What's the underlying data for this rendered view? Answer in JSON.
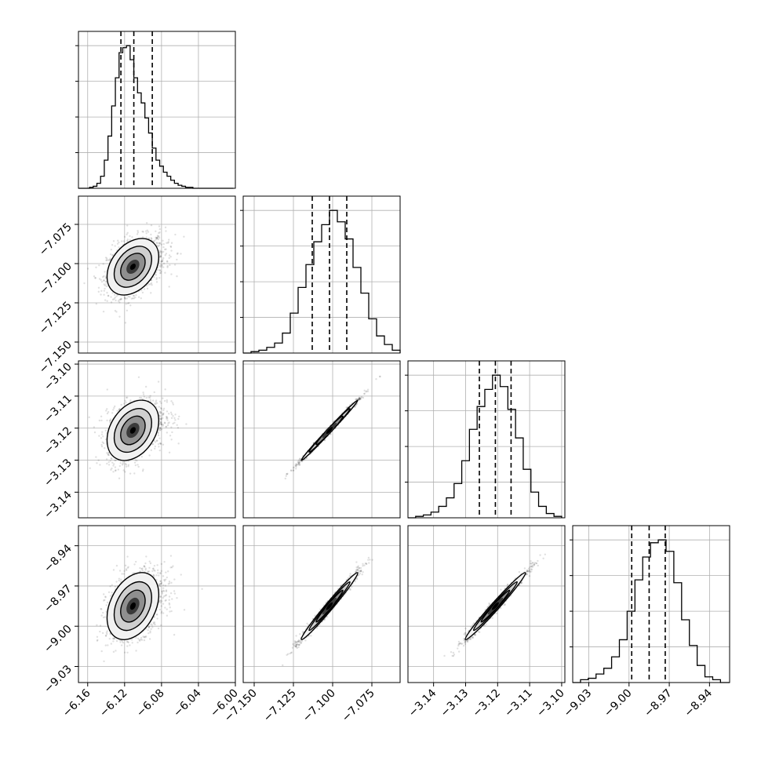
{
  "chart_data": {
    "type": "corner",
    "grid": true,
    "parameters": [
      {
        "index": 0,
        "range": [
          -6.17,
          -6.0
        ],
        "ticks": [
          -6.16,
          -6.12,
          -6.08,
          -6.04,
          -6.0
        ],
        "tick_labels": [
          "−6.16",
          "−6.12",
          "−6.08",
          "−6.04",
          "−6.00"
        ],
        "quantiles": [
          -6.124,
          -6.11,
          -6.09
        ]
      },
      {
        "index": 1,
        "range": [
          -7.157,
          -7.057
        ],
        "ticks": [
          -7.15,
          -7.125,
          -7.1,
          -7.075
        ],
        "tick_labels": [
          "−7.150",
          "−7.125",
          "−7.100",
          "−7.075"
        ],
        "quantiles": [
          -7.113,
          -7.102,
          -7.091
        ]
      },
      {
        "index": 2,
        "range": [
          -3.148,
          -3.099
        ],
        "ticks": [
          -3.14,
          -3.13,
          -3.12,
          -3.11,
          -3.1
        ],
        "tick_labels": [
          "−3.14",
          "−3.13",
          "−3.12",
          "−3.11",
          "−3.10"
        ],
        "quantiles": [
          -3.1257,
          -3.1207,
          -3.1158
        ]
      },
      {
        "index": 3,
        "range": [
          -9.042,
          -8.925
        ],
        "ticks": [
          -9.03,
          -9.0,
          -8.97,
          -8.94
        ],
        "tick_labels": [
          "−9.03",
          "−9.00",
          "−8.97",
          "−8.94"
        ],
        "quantiles": [
          -8.998,
          -8.985,
          -8.973
        ]
      }
    ],
    "marginals": [
      {
        "param": 0,
        "bins": [
          -6.17,
          -6.166,
          -6.162,
          -6.158,
          -6.154,
          -6.15,
          -6.146,
          -6.142,
          -6.138,
          -6.134,
          -6.13,
          -6.126,
          -6.122,
          -6.118,
          -6.114,
          -6.11,
          -6.106,
          -6.102,
          -6.098,
          -6.094,
          -6.09,
          -6.086,
          -6.082,
          -6.078,
          -6.074,
          -6.07,
          -6.066,
          -6.062,
          -6.058,
          -6.054,
          -6.05,
          -6.046,
          -6.042,
          -6.038,
          -6.034,
          -6.03,
          -6.026,
          -6.022,
          -6.018,
          -6.014,
          -6.01,
          -6.006,
          -6.002
        ],
        "counts": [
          0,
          0,
          0,
          1,
          2,
          5,
          12,
          28,
          52,
          82,
          110,
          135,
          140,
          142,
          128,
          110,
          95,
          85,
          70,
          55,
          40,
          28,
          22,
          16,
          12,
          8,
          5,
          3,
          2,
          1,
          1,
          0,
          0,
          0,
          0,
          0,
          0,
          0,
          0,
          0,
          0,
          0
        ]
      },
      {
        "param": 1,
        "bins": [
          -7.157,
          -7.152,
          -7.147,
          -7.142,
          -7.137,
          -7.132,
          -7.127,
          -7.122,
          -7.117,
          -7.112,
          -7.107,
          -7.102,
          -7.097,
          -7.092,
          -7.087,
          -7.082,
          -7.077,
          -7.072,
          -7.067,
          -7.062,
          -7.057
        ],
        "counts": [
          0,
          1,
          2,
          4,
          7,
          14,
          28,
          46,
          62,
          78,
          90,
          100,
          92,
          80,
          60,
          42,
          24,
          12,
          6,
          2
        ]
      },
      {
        "param": 2,
        "bins": [
          -3.148,
          -3.1456,
          -3.1432,
          -3.1408,
          -3.1384,
          -3.136,
          -3.1336,
          -3.1312,
          -3.1288,
          -3.1264,
          -3.124,
          -3.1216,
          -3.1192,
          -3.1168,
          -3.1144,
          -3.112,
          -3.1096,
          -3.1072,
          -3.1048,
          -3.1024,
          -3.1
        ],
        "counts": [
          0,
          1,
          2,
          4,
          8,
          14,
          24,
          40,
          62,
          78,
          90,
          100,
          92,
          76,
          56,
          34,
          18,
          8,
          3,
          1
        ]
      },
      {
        "param": 3,
        "bins": [
          -9.042,
          -9.0362,
          -9.0304,
          -9.0246,
          -9.0188,
          -9.013,
          -9.0072,
          -9.0014,
          -8.9956,
          -8.9898,
          -8.984,
          -8.9782,
          -8.9724,
          -8.9666,
          -8.9608,
          -8.955,
          -8.9492,
          -8.9434,
          -8.9376,
          -8.9318,
          -8.925
        ],
        "counts": [
          0,
          2,
          3,
          6,
          10,
          18,
          30,
          50,
          72,
          88,
          98,
          100,
          92,
          70,
          44,
          26,
          12,
          4,
          2,
          0
        ]
      }
    ],
    "pairs": [
      {
        "x": 0,
        "y": 1,
        "mean": [
          -6.111,
          -7.102
        ],
        "sd": [
          0.014,
          0.009
        ],
        "corr": 0.35
      },
      {
        "x": 0,
        "y": 2,
        "mean": [
          -6.111,
          -3.1207
        ],
        "sd": [
          0.014,
          0.0047
        ],
        "corr": 0.33
      },
      {
        "x": 0,
        "y": 3,
        "mean": [
          -6.111,
          -8.985
        ],
        "sd": [
          0.014,
          0.0125
        ],
        "corr": 0.35
      },
      {
        "x": 1,
        "y": 2,
        "mean": [
          -7.102,
          -3.1207
        ],
        "sd": [
          0.009,
          0.0047
        ],
        "corr": 0.995
      },
      {
        "x": 1,
        "y": 3,
        "mean": [
          -7.102,
          -8.985
        ],
        "sd": [
          0.009,
          0.0125
        ],
        "corr": 0.985
      },
      {
        "x": 2,
        "y": 3,
        "mean": [
          -3.1207,
          -8.985
        ],
        "sd": [
          0.0047,
          0.0125
        ],
        "corr": 0.985
      }
    ]
  }
}
